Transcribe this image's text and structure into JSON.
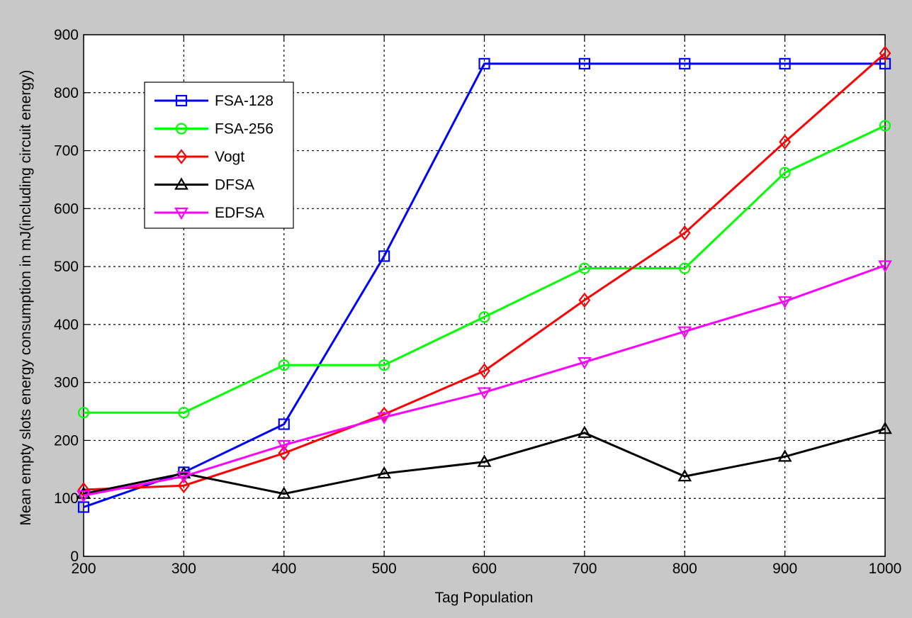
{
  "chart_data": {
    "type": "line",
    "title": "",
    "xlabel": "Tag Population",
    "ylabel": "Mean empty slots energy consumption in mJ(including circuit energy)",
    "x": [
      200,
      300,
      400,
      500,
      600,
      700,
      800,
      900,
      1000
    ],
    "xlim": [
      200,
      1000
    ],
    "ylim": [
      0,
      900
    ],
    "xticks": [
      "200",
      "300",
      "400",
      "500",
      "600",
      "700",
      "800",
      "900",
      "1000"
    ],
    "yticks": [
      "0",
      "100",
      "200",
      "300",
      "400",
      "500",
      "600",
      "700",
      "800",
      "900"
    ],
    "grid": true,
    "legend_position": "top-left",
    "series": [
      {
        "name": "FSA-128",
        "color": "#0000ff",
        "marker": "square",
        "values": [
          85,
          145,
          228,
          518,
          850,
          850,
          850,
          850,
          850
        ]
      },
      {
        "name": "FSA-256",
        "color": "#00ff00",
        "marker": "circle",
        "values": [
          248,
          248,
          330,
          330,
          413,
          497,
          497,
          662,
          743
        ]
      },
      {
        "name": "Vogt",
        "color": "#ff0000",
        "marker": "diamond",
        "values": [
          115,
          122,
          178,
          245,
          320,
          442,
          558,
          715,
          868
        ]
      },
      {
        "name": "DFSA",
        "color": "#000000",
        "marker": "triangle-up",
        "values": [
          108,
          143,
          108,
          143,
          163,
          213,
          138,
          172,
          220
        ]
      },
      {
        "name": "EDFSA",
        "color": "#ff00ff",
        "marker": "triangle-down",
        "values": [
          105,
          138,
          192,
          240,
          283,
          335,
          388,
          440,
          502
        ]
      }
    ]
  }
}
